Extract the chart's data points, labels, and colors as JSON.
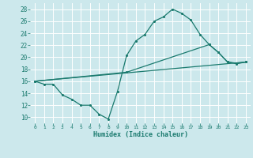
{
  "title": "",
  "xlabel": "Humidex (Indice chaleur)",
  "background_color": "#cce8ec",
  "grid_color": "#ffffff",
  "line_color": "#1a7a6e",
  "xlim": [
    -0.5,
    23.5
  ],
  "ylim": [
    9.0,
    29.0
  ],
  "xticks": [
    0,
    1,
    2,
    3,
    4,
    5,
    6,
    7,
    8,
    9,
    10,
    11,
    12,
    13,
    14,
    15,
    16,
    17,
    18,
    19,
    20,
    21,
    22,
    23
  ],
  "yticks": [
    10,
    12,
    14,
    16,
    18,
    20,
    22,
    24,
    26,
    28
  ],
  "line1_x": [
    0,
    1,
    2,
    3,
    4,
    5,
    6,
    7,
    8,
    9,
    10,
    11,
    12,
    13,
    14,
    15,
    16,
    17,
    18,
    19,
    20,
    21,
    22,
    23
  ],
  "line1_y": [
    16.0,
    15.5,
    15.5,
    13.7,
    13.0,
    12.0,
    12.0,
    10.5,
    9.7,
    14.3,
    20.3,
    22.7,
    23.8,
    26.0,
    26.7,
    28.0,
    27.3,
    26.2,
    23.8,
    22.1,
    20.8,
    19.2,
    19.0,
    19.2
  ],
  "line2_x": [
    0,
    10,
    19,
    20,
    21,
    22,
    23
  ],
  "line2_y": [
    16.0,
    17.5,
    22.1,
    20.8,
    19.2,
    18.9,
    19.2
  ],
  "line3_x": [
    0,
    23
  ],
  "line3_y": [
    16.0,
    19.2
  ]
}
